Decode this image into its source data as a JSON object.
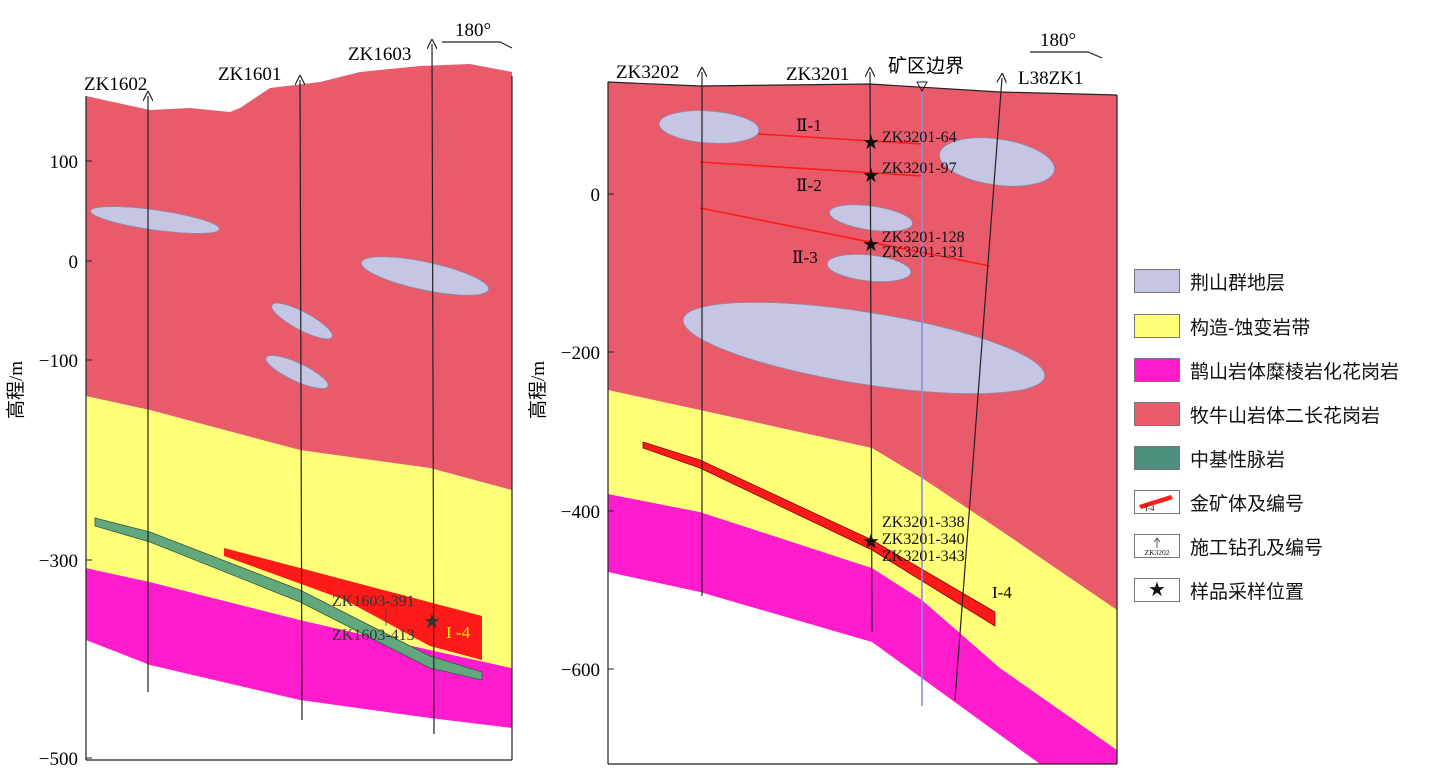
{
  "section_a": {
    "direction": "180°",
    "y_axis_label": "高程/m",
    "y_ticks": [
      "100",
      "0",
      "−100",
      "−300",
      "−500"
    ],
    "drillholes": [
      "ZK1602",
      "ZK1601",
      "ZK1603"
    ],
    "sample_labels": [
      "ZK1603-391",
      "ZK1603-413"
    ],
    "orebody_label": "I -4"
  },
  "section_b": {
    "direction": "180°",
    "y_axis_label": "高程/m",
    "y_ticks": [
      "0",
      "−200",
      "−400",
      "−600"
    ],
    "drillholes": [
      "ZK3202",
      "ZK3201",
      "L38ZK1"
    ],
    "boundary_label": "矿区边界",
    "orebody_labels": [
      "Ⅱ-1",
      "Ⅱ-2",
      "Ⅱ-3",
      "I-4"
    ],
    "sample_labels": [
      "ZK3201-64",
      "ZK3201-97",
      "ZK3201-128",
      "ZK3201-131",
      "ZK3201-338",
      "ZK3201-340",
      "ZK3201-343"
    ]
  },
  "legend": [
    {
      "label": "荆山群地层",
      "type": "fill",
      "color": "#c5c6e3"
    },
    {
      "label": "构造-蚀变岩带",
      "type": "fill",
      "color": "#ffff78"
    },
    {
      "label": "鹊山岩体糜棱岩化花岗岩",
      "type": "fill",
      "color": "#ff1ccc"
    },
    {
      "label": "牧牛山岩体二长花岗岩",
      "type": "fill",
      "color": "#e95b6b"
    },
    {
      "label": "中基性脉岩",
      "type": "fill",
      "color": "#4d8f7f"
    },
    {
      "label": "金矿体及编号",
      "type": "orebody",
      "swatch_text": "I-4"
    },
    {
      "label": "施工钻孔及编号",
      "type": "drill",
      "swatch_text": "ZK3202"
    },
    {
      "label": "样品采样位置",
      "type": "star"
    }
  ],
  "colors": {
    "jingshan": "#c5c6e3",
    "alteration": "#ffff78",
    "queshan": "#ff1ccc",
    "muniushan": "#e95b6b",
    "dike": "#63a77d",
    "ore": "#ff1a1a"
  }
}
